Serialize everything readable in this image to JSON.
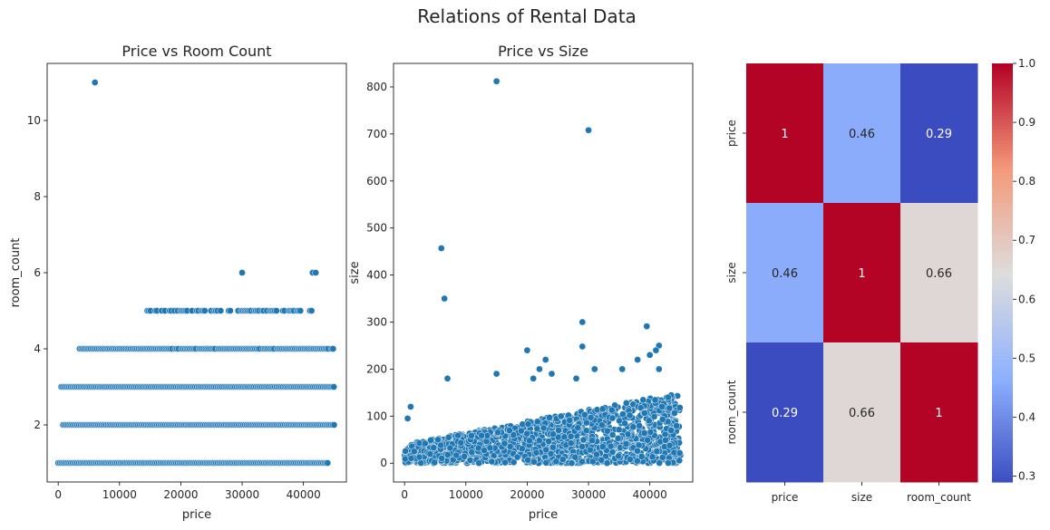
{
  "figure": {
    "title": "Relations of Rental Data"
  },
  "chart_data": [
    {
      "type": "scatter",
      "title": "Price vs Room Count",
      "xlabel": "price",
      "ylabel": "room_count",
      "xlim": [
        -1800,
        47000
      ],
      "ylim": [
        0.5,
        11.5
      ],
      "xticks": [
        0,
        10000,
        20000,
        30000,
        40000
      ],
      "yticks": [
        2,
        4,
        6,
        8,
        10
      ],
      "grid": false,
      "color": "#1f77b4",
      "rows": [
        {
          "y": 1,
          "x_range": [
            0,
            44000
          ]
        },
        {
          "y": 2,
          "x_range": [
            800,
            45000
          ]
        },
        {
          "y": 3,
          "x_range": [
            500,
            45000
          ]
        },
        {
          "y": 4,
          "x_range": [
            3500,
            45000
          ]
        },
        {
          "y": 5,
          "x_range": [
            13500,
            41500
          ]
        }
      ],
      "outliers": [
        {
          "x": 6000,
          "y": 11
        },
        {
          "x": 30000,
          "y": 6
        },
        {
          "x": 41500,
          "y": 6
        },
        {
          "x": 42000,
          "y": 6
        }
      ]
    },
    {
      "type": "scatter",
      "title": "Price vs Size",
      "xlabel": "price",
      "ylabel": "size",
      "xlim": [
        -1800,
        47000
      ],
      "ylim": [
        -40,
        850
      ],
      "xticks": [
        0,
        10000,
        20000,
        30000,
        40000
      ],
      "yticks": [
        0,
        100,
        200,
        300,
        400,
        500,
        600,
        700,
        800
      ],
      "grid": false,
      "color": "#1f77b4",
      "cloud": {
        "x_range": [
          0,
          45000
        ],
        "y_range": [
          0,
          150
        ]
      },
      "points": [
        {
          "x": 15000,
          "y": 812
        },
        {
          "x": 30000,
          "y": 708
        },
        {
          "x": 6000,
          "y": 457
        },
        {
          "x": 6500,
          "y": 350
        },
        {
          "x": 29000,
          "y": 300
        },
        {
          "x": 39500,
          "y": 291
        },
        {
          "x": 29000,
          "y": 248
        },
        {
          "x": 41500,
          "y": 250
        },
        {
          "x": 20000,
          "y": 240
        },
        {
          "x": 23000,
          "y": 220
        },
        {
          "x": 21000,
          "y": 180
        },
        {
          "x": 7000,
          "y": 180
        },
        {
          "x": 15000,
          "y": 190
        },
        {
          "x": 22000,
          "y": 200
        },
        {
          "x": 24000,
          "y": 190
        },
        {
          "x": 28000,
          "y": 180
        },
        {
          "x": 31000,
          "y": 200
        },
        {
          "x": 35500,
          "y": 200
        },
        {
          "x": 38000,
          "y": 220
        },
        {
          "x": 40000,
          "y": 230
        },
        {
          "x": 41000,
          "y": 240
        },
        {
          "x": 41500,
          "y": 200
        },
        {
          "x": 43000,
          "y": 140
        },
        {
          "x": 1000,
          "y": 120
        },
        {
          "x": 500,
          "y": 95
        }
      ]
    },
    {
      "type": "heatmap",
      "title": "",
      "labels": [
        "price",
        "size",
        "room_count"
      ],
      "matrix": [
        [
          1,
          0.46,
          0.29
        ],
        [
          0.46,
          1,
          0.66
        ],
        [
          0.29,
          0.66,
          1
        ]
      ],
      "annotations": [
        [
          "1",
          "0.46",
          "0.29"
        ],
        [
          "0.46",
          "1",
          "0.66"
        ],
        [
          "0.29",
          "0.66",
          "1"
        ]
      ],
      "colormap": "coolwarm",
      "vmin": 0.29,
      "vmax": 1.0,
      "colorbar_ticks": [
        "0.3",
        "0.4",
        "0.5",
        "0.6",
        "0.7",
        "0.8",
        "0.9",
        "1.0"
      ]
    }
  ]
}
